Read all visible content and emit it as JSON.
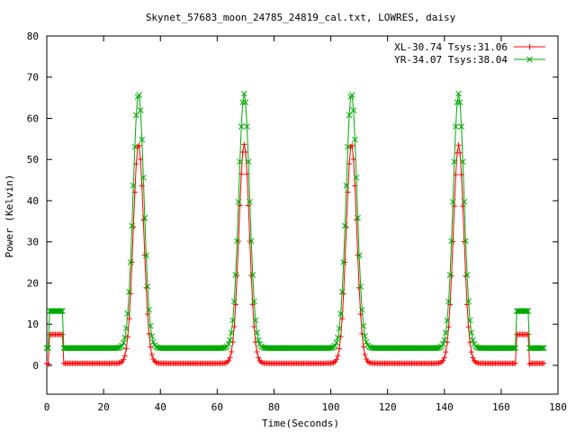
{
  "chart_data": {
    "type": "line",
    "title": "Skynet_57683_moon_24785_24819_cal.txt, LOWRES, daisy",
    "xlabel": "Time(Seconds)",
    "ylabel": "Power (Kelvin)",
    "xlim": [
      0,
      180
    ],
    "ylim": [
      -7,
      80
    ],
    "xticks": [
      0,
      20,
      40,
      60,
      80,
      100,
      120,
      140,
      160,
      180
    ],
    "yticks": [
      0,
      10,
      20,
      30,
      40,
      50,
      60,
      70,
      80
    ],
    "grid": false,
    "legend_position": "top-right",
    "sample_interval": 0.5,
    "x_max": 175,
    "calibration": {
      "spikes_at": [
        0.5,
        170
      ],
      "windows": [
        [
          1,
          5.5
        ],
        [
          165.5,
          170
        ]
      ]
    },
    "series": [
      {
        "name": "XL-30.74 Tsys:31.06",
        "color": "#ff0000",
        "marker": "+",
        "baseline": 0.5,
        "calibration_level": 7.5,
        "calibration_spike": 0.3,
        "peaks": [
          {
            "x": 32.3,
            "height": 53.2
          },
          {
            "x": 69.5,
            "height": 53.2
          },
          {
            "x": 107.3,
            "height": 53.2
          },
          {
            "x": 145.0,
            "height": 53.0
          }
        ],
        "peak_width": 1.85
      },
      {
        "name": "YR-34.07 Tsys:38.04",
        "color": "#00aa00",
        "marker": "x",
        "baseline": 4.2,
        "calibration_level": 13.2,
        "calibration_spike": 4.2,
        "peaks": [
          {
            "x": 32.3,
            "height": 61.8
          },
          {
            "x": 69.5,
            "height": 61.8
          },
          {
            "x": 107.3,
            "height": 61.8
          },
          {
            "x": 145.0,
            "height": 61.8
          }
        ],
        "peak_width": 1.9
      }
    ]
  }
}
